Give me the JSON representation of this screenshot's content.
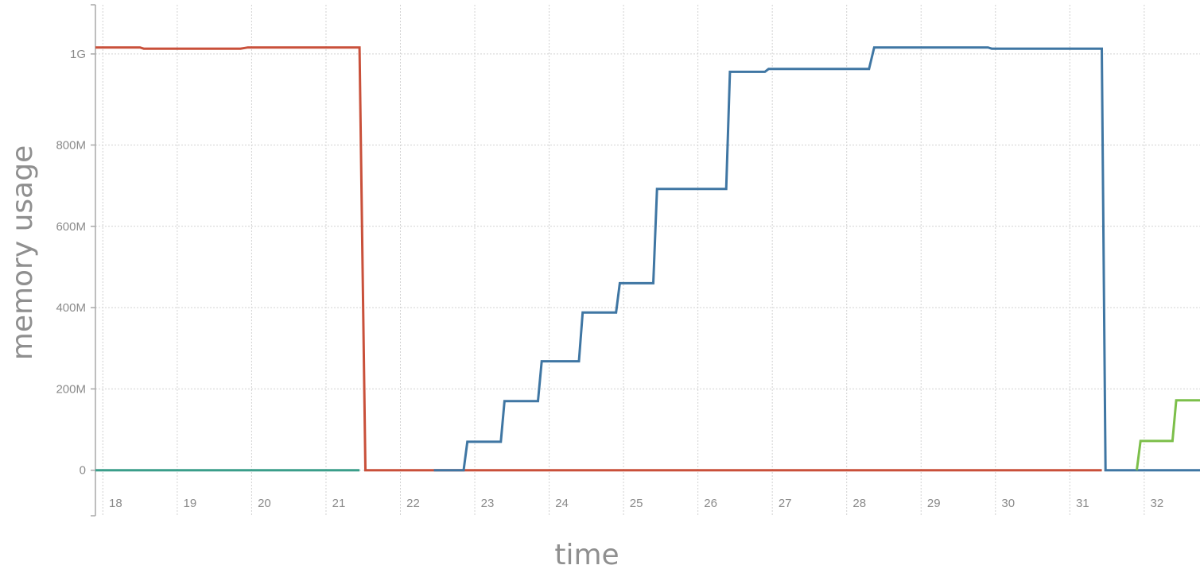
{
  "chart_data": {
    "type": "line",
    "xlabel": "time",
    "ylabel": "memory usage",
    "x_ticks": [
      "18",
      "19",
      "20",
      "21",
      "22",
      "23",
      "24",
      "25",
      "26",
      "27",
      "28",
      "29",
      "30",
      "31",
      "32"
    ],
    "y_ticks": [
      "0",
      "200M",
      "400M",
      "600M",
      "800M",
      "1G"
    ],
    "xlim": [
      17.45,
      32.3
    ],
    "ylim_mb": [
      -112,
      1145
    ],
    "grid": true,
    "series": [
      {
        "color": "#c9503a",
        "points": [
          [
            17.45,
            1040
          ],
          [
            18.05,
            1040
          ],
          [
            18.1,
            1037
          ],
          [
            19.4,
            1037
          ],
          [
            19.5,
            1040
          ],
          [
            21.0,
            1040
          ],
          [
            21.08,
            0
          ],
          [
            30.98,
            0
          ]
        ]
      },
      {
        "color": "#3f76a3",
        "points": [
          [
            22.0,
            0
          ],
          [
            22.4,
            0
          ],
          [
            22.45,
            70
          ],
          [
            22.9,
            70
          ],
          [
            22.95,
            170
          ],
          [
            23.4,
            170
          ],
          [
            23.45,
            268
          ],
          [
            23.95,
            268
          ],
          [
            24.0,
            388
          ],
          [
            24.45,
            388
          ],
          [
            24.5,
            460
          ],
          [
            24.95,
            460
          ],
          [
            25.0,
            692
          ],
          [
            25.93,
            692
          ],
          [
            25.98,
            980
          ],
          [
            26.45,
            980
          ],
          [
            26.5,
            987
          ],
          [
            27.85,
            987
          ],
          [
            27.92,
            1040
          ],
          [
            29.45,
            1040
          ],
          [
            29.5,
            1037
          ],
          [
            30.98,
            1037
          ],
          [
            31.03,
            0
          ],
          [
            32.3,
            0
          ]
        ]
      },
      {
        "color": "#3a9e8a",
        "points": [
          [
            17.45,
            0
          ],
          [
            21.0,
            0
          ]
        ]
      },
      {
        "color": "#7cbf4a",
        "points": [
          [
            31.45,
            0
          ],
          [
            31.5,
            72
          ],
          [
            31.93,
            72
          ],
          [
            31.98,
            172
          ],
          [
            32.3,
            172
          ]
        ]
      }
    ]
  }
}
